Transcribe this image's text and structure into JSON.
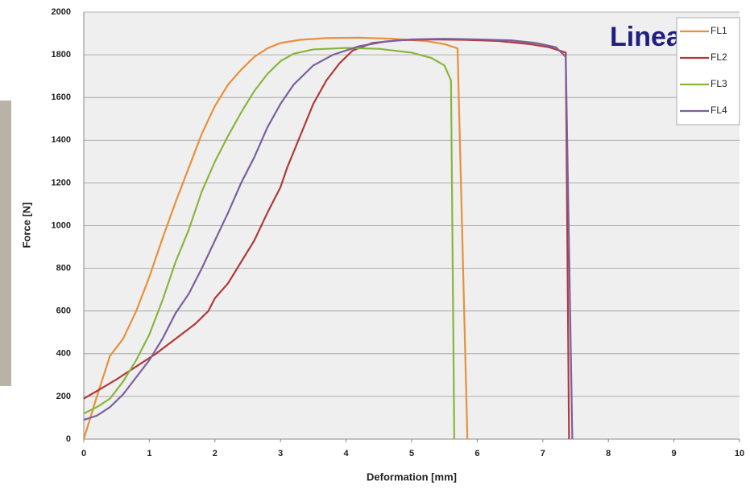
{
  "chart_data": {
    "type": "line",
    "annotation": "Linear",
    "xlabel": "Deformation [mm]",
    "ylabel": "Force [N]",
    "xlim": [
      0,
      10
    ],
    "xticks": [
      0,
      1,
      2,
      3,
      4,
      5,
      6,
      7,
      8,
      9,
      10
    ],
    "ylim": [
      0,
      2000
    ],
    "yticks": [
      0,
      200,
      400,
      600,
      800,
      1000,
      1200,
      1400,
      1600,
      1800,
      2000
    ],
    "grid": true,
    "legend": "upper right",
    "series": [
      {
        "name": "FL1",
        "color": "#e8903a",
        "x": [
          0,
          0.2,
          0.4,
          0.6,
          0.8,
          1,
          1.2,
          1.4,
          1.6,
          1.8,
          2,
          2.2,
          2.4,
          2.6,
          2.8,
          3,
          3.3,
          3.7,
          4.2,
          4.7,
          5.2,
          5.5,
          5.7,
          5.85
        ],
        "values": [
          0,
          200,
          390,
          470,
          600,
          760,
          940,
          1110,
          1270,
          1430,
          1560,
          1660,
          1730,
          1790,
          1830,
          1855,
          1870,
          1878,
          1880,
          1875,
          1865,
          1850,
          1830,
          0
        ]
      },
      {
        "name": "FL2",
        "color": "#b03a3a",
        "x": [
          0,
          0.2,
          0.5,
          0.8,
          1.1,
          1.4,
          1.7,
          1.9,
          2,
          2.2,
          2.4,
          2.6,
          2.8,
          3,
          3.1,
          3.3,
          3.5,
          3.7,
          3.9,
          4.1,
          4.4,
          4.8,
          5.3,
          5.8,
          6.3,
          6.8,
          7.1,
          7.35,
          7.4
        ],
        "values": [
          190,
          225,
          280,
          340,
          400,
          470,
          540,
          600,
          660,
          730,
          830,
          930,
          1060,
          1180,
          1270,
          1420,
          1570,
          1680,
          1760,
          1820,
          1855,
          1868,
          1872,
          1870,
          1865,
          1850,
          1835,
          1810,
          0
        ]
      },
      {
        "name": "FL3",
        "color": "#8ab53e",
        "x": [
          0,
          0.2,
          0.4,
          0.6,
          0.8,
          1,
          1.2,
          1.4,
          1.6,
          1.8,
          2,
          2.2,
          2.4,
          2.6,
          2.8,
          3,
          3.2,
          3.5,
          4,
          4.5,
          5,
          5.3,
          5.5,
          5.6,
          5.65
        ],
        "values": [
          120,
          150,
          190,
          270,
          370,
          490,
          650,
          830,
          980,
          1160,
          1300,
          1420,
          1530,
          1630,
          1710,
          1770,
          1805,
          1825,
          1832,
          1828,
          1810,
          1785,
          1750,
          1680,
          0
        ]
      },
      {
        "name": "FL4",
        "color": "#7b5fa0",
        "x": [
          0,
          0.2,
          0.4,
          0.6,
          0.8,
          1,
          1.2,
          1.4,
          1.6,
          1.8,
          2,
          2.2,
          2.4,
          2.6,
          2.8,
          3,
          3.2,
          3.5,
          3.8,
          4.2,
          4.6,
          5,
          5.5,
          6,
          6.5,
          6.9,
          7.2,
          7.35,
          7.45
        ],
        "values": [
          90,
          110,
          150,
          210,
          290,
          370,
          470,
          590,
          680,
          800,
          930,
          1060,
          1200,
          1320,
          1460,
          1570,
          1660,
          1750,
          1800,
          1840,
          1862,
          1872,
          1875,
          1872,
          1868,
          1855,
          1835,
          1790,
          0
        ]
      }
    ]
  }
}
